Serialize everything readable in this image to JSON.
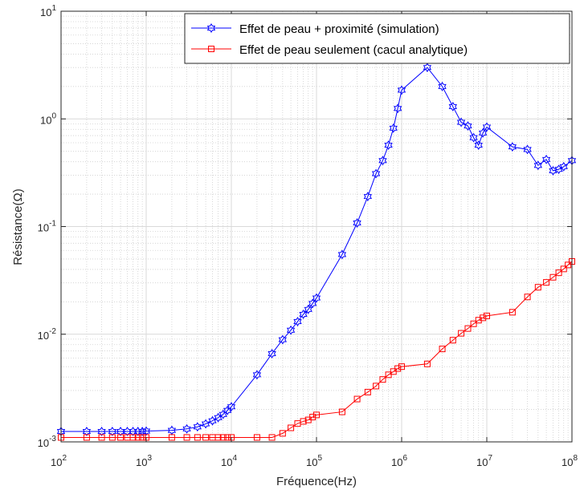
{
  "chart_data": {
    "type": "line",
    "xscale": "log",
    "yscale": "log",
    "xlim": [
      100,
      100000000
    ],
    "ylim": [
      0.001,
      10
    ],
    "xlabel": "Fréquence(Hz)",
    "ylabel": "Résistance(Ω)",
    "grid": true,
    "minor_grid": true,
    "legend_position": "top-right",
    "x_ticks": [
      {
        "value": 100,
        "base": "10",
        "exp": "2"
      },
      {
        "value": 1000,
        "base": "10",
        "exp": "3"
      },
      {
        "value": 10000,
        "base": "10",
        "exp": "4"
      },
      {
        "value": 100000,
        "base": "10",
        "exp": "5"
      },
      {
        "value": 1000000,
        "base": "10",
        "exp": "6"
      },
      {
        "value": 10000000,
        "base": "10",
        "exp": "7"
      },
      {
        "value": 100000000,
        "base": "10",
        "exp": "8"
      }
    ],
    "y_ticks": [
      {
        "value": 0.001,
        "base": "10",
        "exp": "-3"
      },
      {
        "value": 0.01,
        "base": "10",
        "exp": "-2"
      },
      {
        "value": 0.1,
        "base": "10",
        "exp": "-1"
      },
      {
        "value": 1,
        "base": "10",
        "exp": "0"
      },
      {
        "value": 10,
        "base": "10",
        "exp": "1"
      }
    ],
    "series": [
      {
        "name": "Effet de peau + proximité (simulation)",
        "color": "#0000ff",
        "marker": "hexagram",
        "x": [
          100,
          200,
          300,
          400,
          500,
          600,
          700,
          800,
          900,
          1000,
          2000,
          3000,
          4000,
          5000,
          6000,
          7000,
          8000,
          9000,
          10000,
          20000,
          30000,
          40000,
          50000,
          60000,
          70000,
          80000,
          90000,
          100000,
          200000,
          300000,
          400000,
          500000,
          600000,
          700000,
          800000,
          900000,
          1000000,
          2000000,
          3000000,
          4000000,
          5000000,
          6000000,
          7000000,
          8000000,
          9000000,
          10000000,
          20000000,
          30000000,
          40000000,
          50000000,
          60000000,
          70000000,
          80000000,
          100000000
        ],
        "y": [
          0.00125,
          0.00125,
          0.00125,
          0.00125,
          0.00125,
          0.00125,
          0.00125,
          0.00125,
          0.00125,
          0.00126,
          0.00128,
          0.00132,
          0.00138,
          0.00147,
          0.00157,
          0.00168,
          0.0018,
          0.00196,
          0.00212,
          0.0042,
          0.0066,
          0.0089,
          0.0109,
          0.0131,
          0.0153,
          0.017,
          0.0193,
          0.0217,
          0.055,
          0.108,
          0.19,
          0.31,
          0.41,
          0.57,
          0.82,
          1.25,
          1.85,
          3.0,
          2.0,
          1.3,
          0.93,
          0.86,
          0.67,
          0.57,
          0.74,
          0.84,
          0.55,
          0.52,
          0.37,
          0.42,
          0.33,
          0.34,
          0.36,
          0.41
        ]
      },
      {
        "name": "Effet de peau seulement (cacul analytique)",
        "color": "#ff0000",
        "marker": "square",
        "x": [
          100,
          200,
          300,
          400,
          500,
          600,
          700,
          800,
          900,
          1000,
          2000,
          3000,
          4000,
          5000,
          6000,
          7000,
          8000,
          9000,
          10000,
          20000,
          30000,
          40000,
          50000,
          60000,
          70000,
          80000,
          90000,
          100000,
          200000,
          300000,
          400000,
          500000,
          600000,
          700000,
          800000,
          900000,
          1000000,
          2000000,
          3000000,
          4000000,
          5000000,
          6000000,
          7000000,
          8000000,
          9000000,
          10000000,
          20000000,
          30000000,
          40000000,
          50000000,
          60000000,
          70000000,
          80000000,
          90000000,
          100000000
        ],
        "y": [
          0.0011,
          0.0011,
          0.0011,
          0.0011,
          0.0011,
          0.0011,
          0.0011,
          0.0011,
          0.0011,
          0.0011,
          0.0011,
          0.0011,
          0.0011,
          0.0011,
          0.0011,
          0.0011,
          0.0011,
          0.0011,
          0.0011,
          0.0011,
          0.0011,
          0.0012,
          0.00135,
          0.00148,
          0.00155,
          0.0016,
          0.0017,
          0.00178,
          0.0019,
          0.0025,
          0.0029,
          0.0033,
          0.0038,
          0.0042,
          0.0045,
          0.0048,
          0.005,
          0.0053,
          0.0073,
          0.0088,
          0.0102,
          0.0113,
          0.0125,
          0.0135,
          0.0142,
          0.0148,
          0.016,
          0.0222,
          0.0273,
          0.0303,
          0.0338,
          0.0372,
          0.0404,
          0.044,
          0.0474
        ]
      }
    ]
  }
}
